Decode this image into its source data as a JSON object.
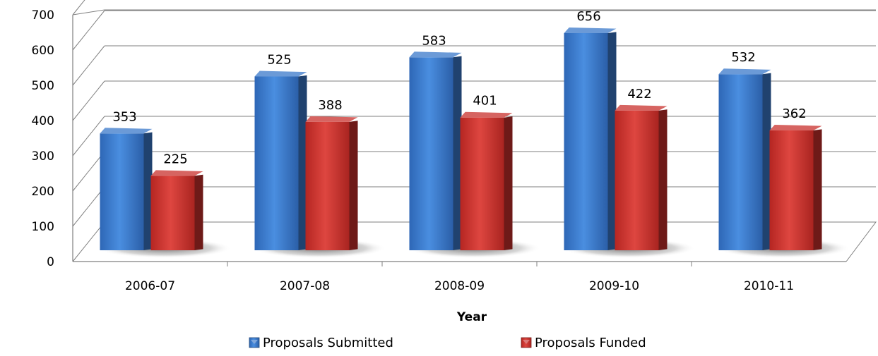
{
  "chart_data": {
    "type": "bar",
    "title": "",
    "xlabel": "Year",
    "ylabel": "",
    "categories": [
      "2006-07",
      "2007-08",
      "2008-09",
      "2009-10",
      "2010-11"
    ],
    "series": [
      {
        "name": "Proposals Submitted",
        "color": "#3a78c9",
        "values": [
          353,
          525,
          583,
          656,
          532
        ]
      },
      {
        "name": "Proposals Funded",
        "color": "#c8302c",
        "values": [
          225,
          388,
          401,
          422,
          362
        ]
      }
    ],
    "ylim": [
      0,
      700
    ],
    "yticks": [
      0,
      100,
      200,
      300,
      400,
      500,
      600,
      700
    ],
    "grid": true,
    "legend_position": "bottom",
    "style": "3d-clustered-column"
  }
}
